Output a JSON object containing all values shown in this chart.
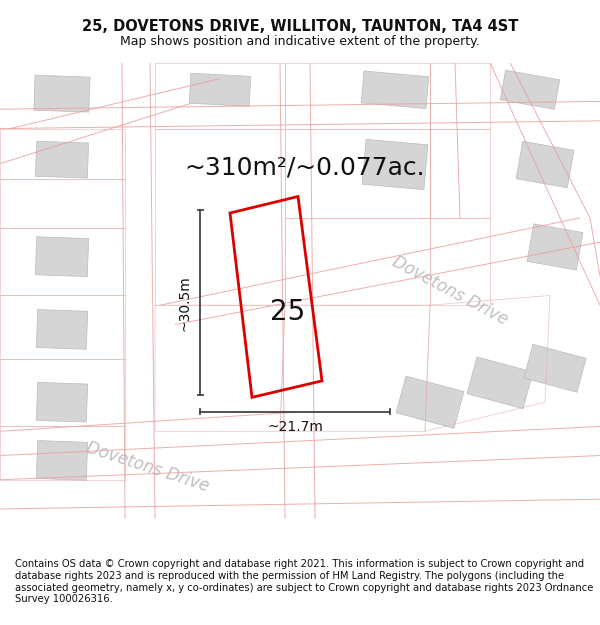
{
  "title_line1": "25, DOVETONS DRIVE, WILLITON, TAUNTON, TA4 4ST",
  "title_line2": "Map shows position and indicative extent of the property.",
  "area_label": "~310m²/~0.077ac.",
  "number_label": "25",
  "dim_width": "~21.7m",
  "dim_height": "~30.5m",
  "road_label": "Dovetons Drive",
  "footer_text": "Contains OS data © Crown copyright and database right 2021. This information is subject to Crown copyright and database rights 2023 and is reproduced with the permission of HM Land Registry. The polygons (including the associated geometry, namely x, y co-ordinates) are subject to Crown copyright and database rights 2023 Ordnance Survey 100026316.",
  "map_bg": "#f7f7f7",
  "block_color": "#d5d5d5",
  "road_line_color": "#e8a0a0",
  "plot_border_color": "#dd0000",
  "dim_line_color": "#444444",
  "text_color": "#111111",
  "road_text_color": "#c0c0c0",
  "title_fontsize": 10.5,
  "subtitle_fontsize": 9,
  "area_fontsize": 18,
  "number_fontsize": 20,
  "dim_fontsize": 10,
  "road_fontsize": 12,
  "footer_fontsize": 7.2
}
